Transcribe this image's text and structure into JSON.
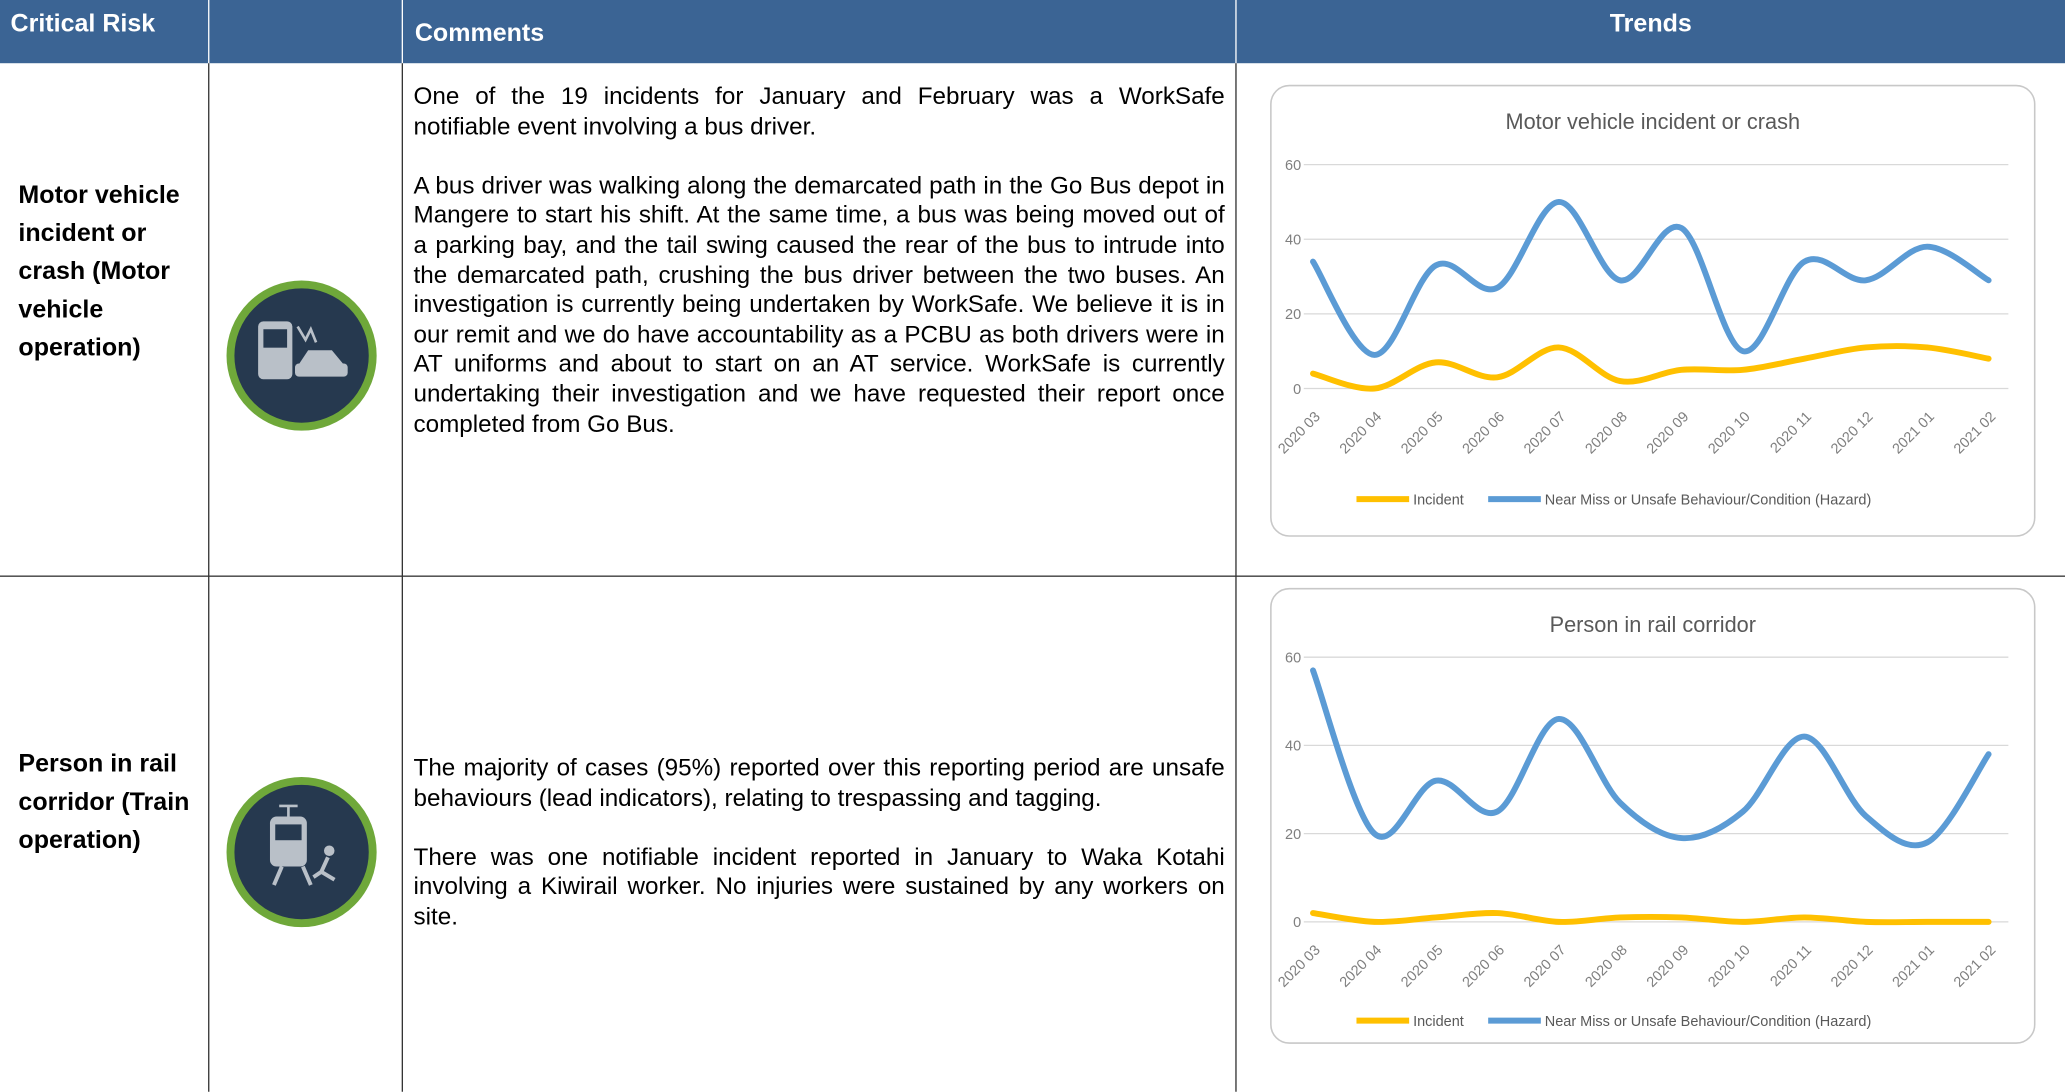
{
  "header": [
    "Critical Risk",
    "Comments",
    "Trends"
  ],
  "rows": [
    {
      "risk": "Motor vehicle incident or crash (Motor vehicle operation)",
      "comments": [
        "One of the 19 incidents for January and February was a WorkSafe notifiable event involving a bus driver.",
        "A bus driver was walking along the demarcated path in the Go Bus depot in Mangere to start his shift. At the same time, a bus was being moved out of a parking bay, and the tail swing caused the rear of the bus to intrude into the demarcated path, crushing the bus driver between the two buses. An investigation is currently being undertaken by WorkSafe. We believe it is in our remit and we do have accountability as a PCBU as both drivers were in AT uniforms and about to start on an AT service. WorkSafe is currently undertaking their investigation and we have requested their report once completed from Go Bus."
      ]
    },
    {
      "risk": "Person in rail corridor (Train operation)",
      "comments": [
        "The majority of cases (95%) reported over this reporting period are unsafe behaviours (lead indicators), relating to trespassing and tagging.",
        "There was one notifiable incident reported in January to Waka Kotahi involving a Kiwirail worker. No injuries were sustained by any workers on site."
      ]
    }
  ],
  "chart_data": [
    {
      "type": "line",
      "title": "Motor vehicle incident or crash",
      "categories": [
        "2020 03",
        "2020 04",
        "2020 05",
        "2020 06",
        "2020 07",
        "2020 08",
        "2020 09",
        "2020 10",
        "2020 11",
        "2020 12",
        "2021 01",
        "2021 02"
      ],
      "series": [
        {
          "name": "Incident",
          "color": "#ffc000",
          "values": [
            4,
            0,
            7,
            3,
            11,
            2,
            5,
            5,
            8,
            11,
            11,
            8
          ]
        },
        {
          "name": "Near Miss or Unsafe Behaviour/Condition (Hazard)",
          "color": "#5b9bd5",
          "values": [
            34,
            9,
            33,
            27,
            50,
            29,
            43,
            10,
            34,
            29,
            38,
            29
          ]
        }
      ],
      "ylim": [
        0,
        60
      ],
      "yticks": [
        0,
        20,
        40,
        60
      ],
      "grid": true,
      "legend": "bottom",
      "smooth": true
    },
    {
      "type": "line",
      "title": "Person in rail corridor",
      "categories": [
        "2020 03",
        "2020 04",
        "2020 05",
        "2020 06",
        "2020 07",
        "2020 08",
        "2020 09",
        "2020 10",
        "2020 11",
        "2020 12",
        "2021 01",
        "2021 02"
      ],
      "series": [
        {
          "name": "Incident",
          "color": "#ffc000",
          "values": [
            2,
            0,
            1,
            2,
            0,
            1,
            1,
            0,
            1,
            0,
            0,
            0
          ]
        },
        {
          "name": "Near Miss or Unsafe Behaviour/Condition (Hazard)",
          "color": "#5b9bd5",
          "values": [
            57,
            20,
            32,
            25,
            46,
            27,
            19,
            25,
            42,
            24,
            18,
            38
          ]
        }
      ],
      "ylim": [
        0,
        60
      ],
      "yticks": [
        0,
        20,
        40,
        60
      ],
      "grid": true,
      "legend": "bottom",
      "smooth": true
    }
  ]
}
